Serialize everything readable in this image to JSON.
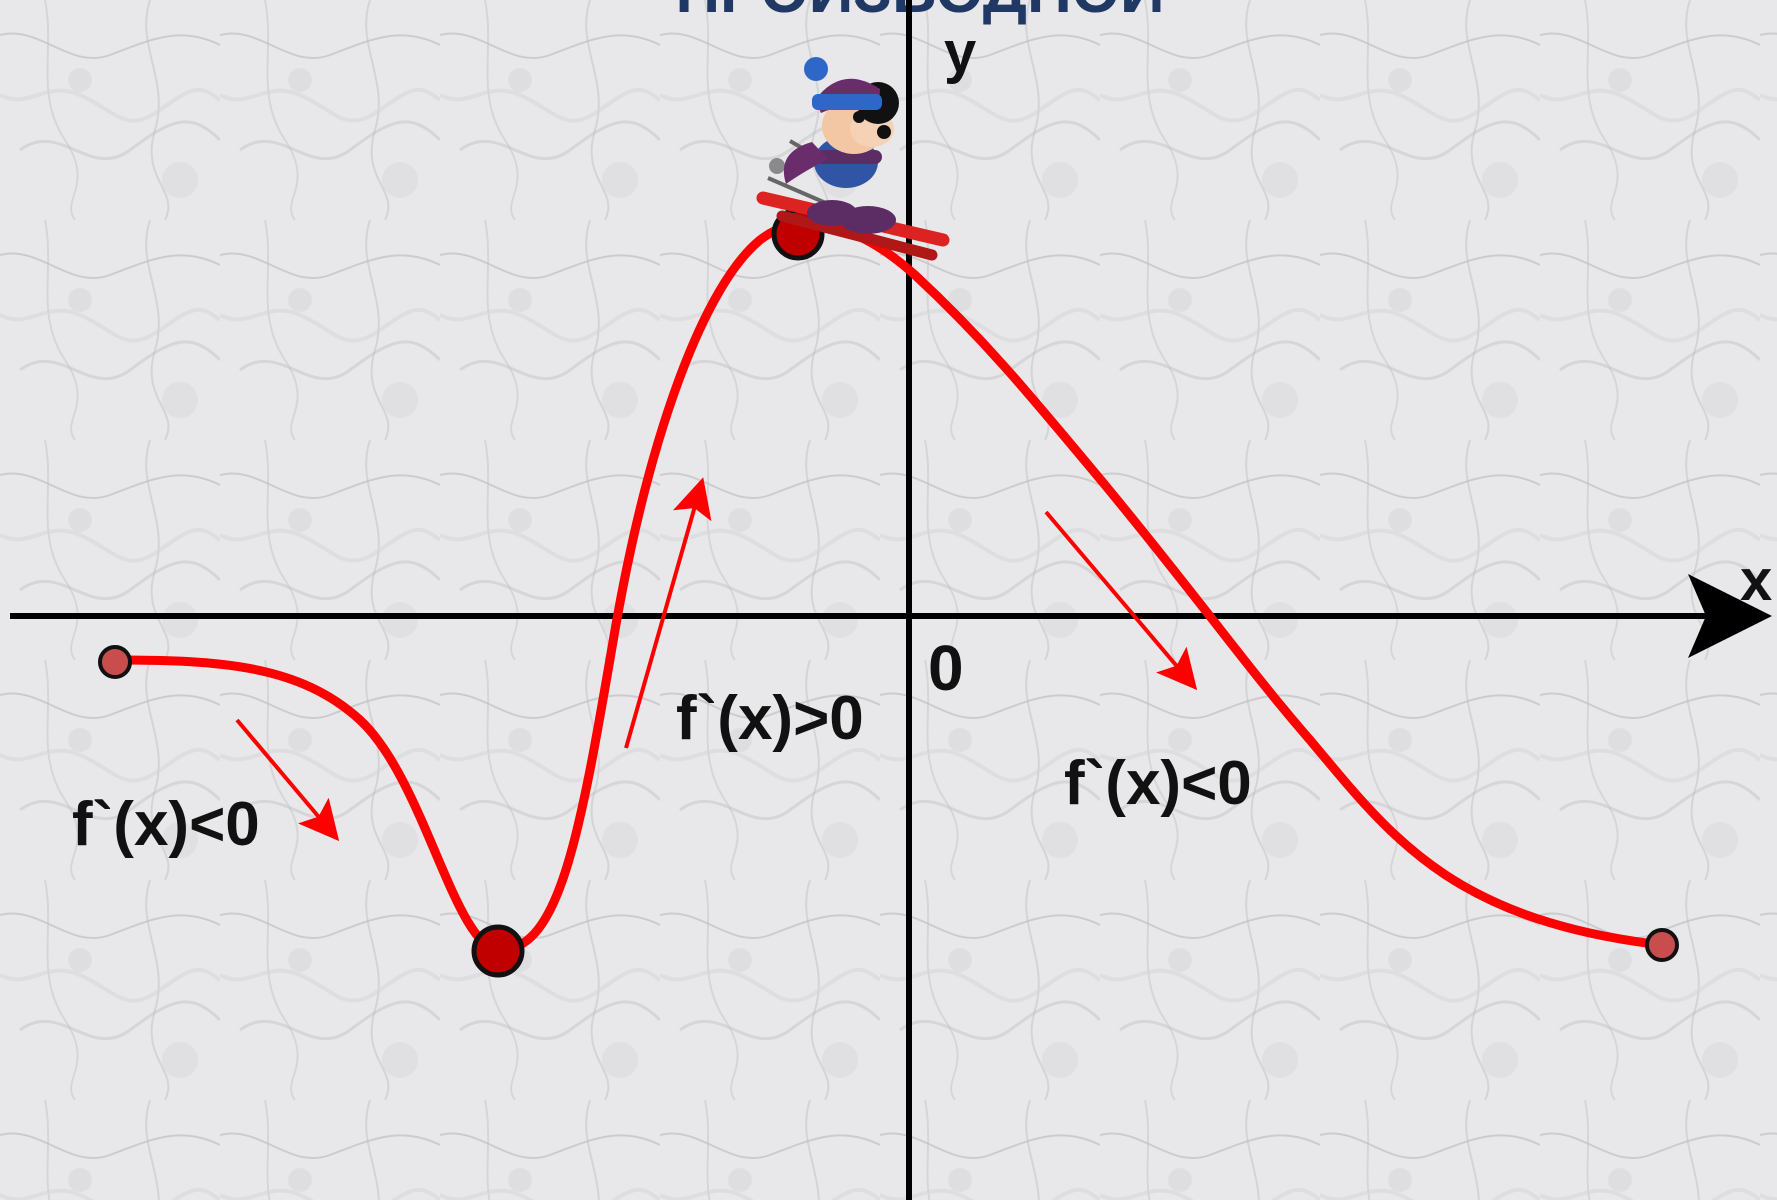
{
  "title": "ПРОИЗВОДНОЙ",
  "axes": {
    "x_label": "x",
    "y_label": "y",
    "origin_label": "0"
  },
  "annotations": [
    {
      "text": "f`(x)<0"
    },
    {
      "text": "f`(x)>0"
    },
    {
      "text": "f`(x)<0"
    }
  ],
  "icons": {
    "skier": "mickey-skier-icon"
  },
  "colors": {
    "curve": "#ff0000",
    "point_fill": "#cc0000",
    "axis": "#000000",
    "title": "#1f3864",
    "text": "#111111",
    "background": "#e8e8ea"
  }
}
